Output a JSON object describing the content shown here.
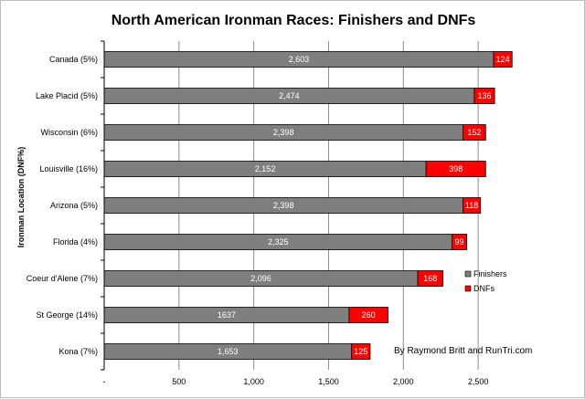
{
  "chart_data": {
    "type": "bar",
    "orientation": "horizontal",
    "stacked": true,
    "title": "North American Ironman Races: Finishers and DNFs",
    "ylabel": "Ironman Location (DNF%)",
    "xlabel": "",
    "categories": [
      "Canada (5%)",
      "Lake Placid (5%)",
      "Wisconsin (6%)",
      "Louisville (16%)",
      "Arizona (5%)",
      "Florida (4%)",
      "Coeur d'Alene (7%)",
      "St George (14%)",
      "Kona (7%)"
    ],
    "series": [
      {
        "name": "Finishers",
        "color": "#7f7f7f",
        "values": [
          2603,
          2474,
          2398,
          2152,
          2398,
          2325,
          2096,
          1637,
          1653
        ],
        "labels": [
          "2,603",
          "2,474",
          "2,398",
          "2,152",
          "2,398",
          "2,325",
          "2,096",
          "1637",
          "1,653"
        ]
      },
      {
        "name": "DNFs",
        "color": "#ff0000",
        "values": [
          124,
          136,
          152,
          398,
          118,
          99,
          168,
          260,
          125
        ],
        "labels": [
          "124",
          "136",
          "152",
          "398",
          "118",
          "99",
          "168",
          "260",
          "125"
        ]
      }
    ],
    "xlim": [
      0,
      2750
    ],
    "xticks": [
      0,
      500,
      1000,
      1500,
      2000,
      2500
    ],
    "xtick_labels": [
      "-",
      "500",
      "1,000",
      "1,500",
      "2,000",
      "2,500"
    ],
    "grid": true,
    "legend_position": "right",
    "annotation": "By Raymond Britt and RunTri.com"
  }
}
